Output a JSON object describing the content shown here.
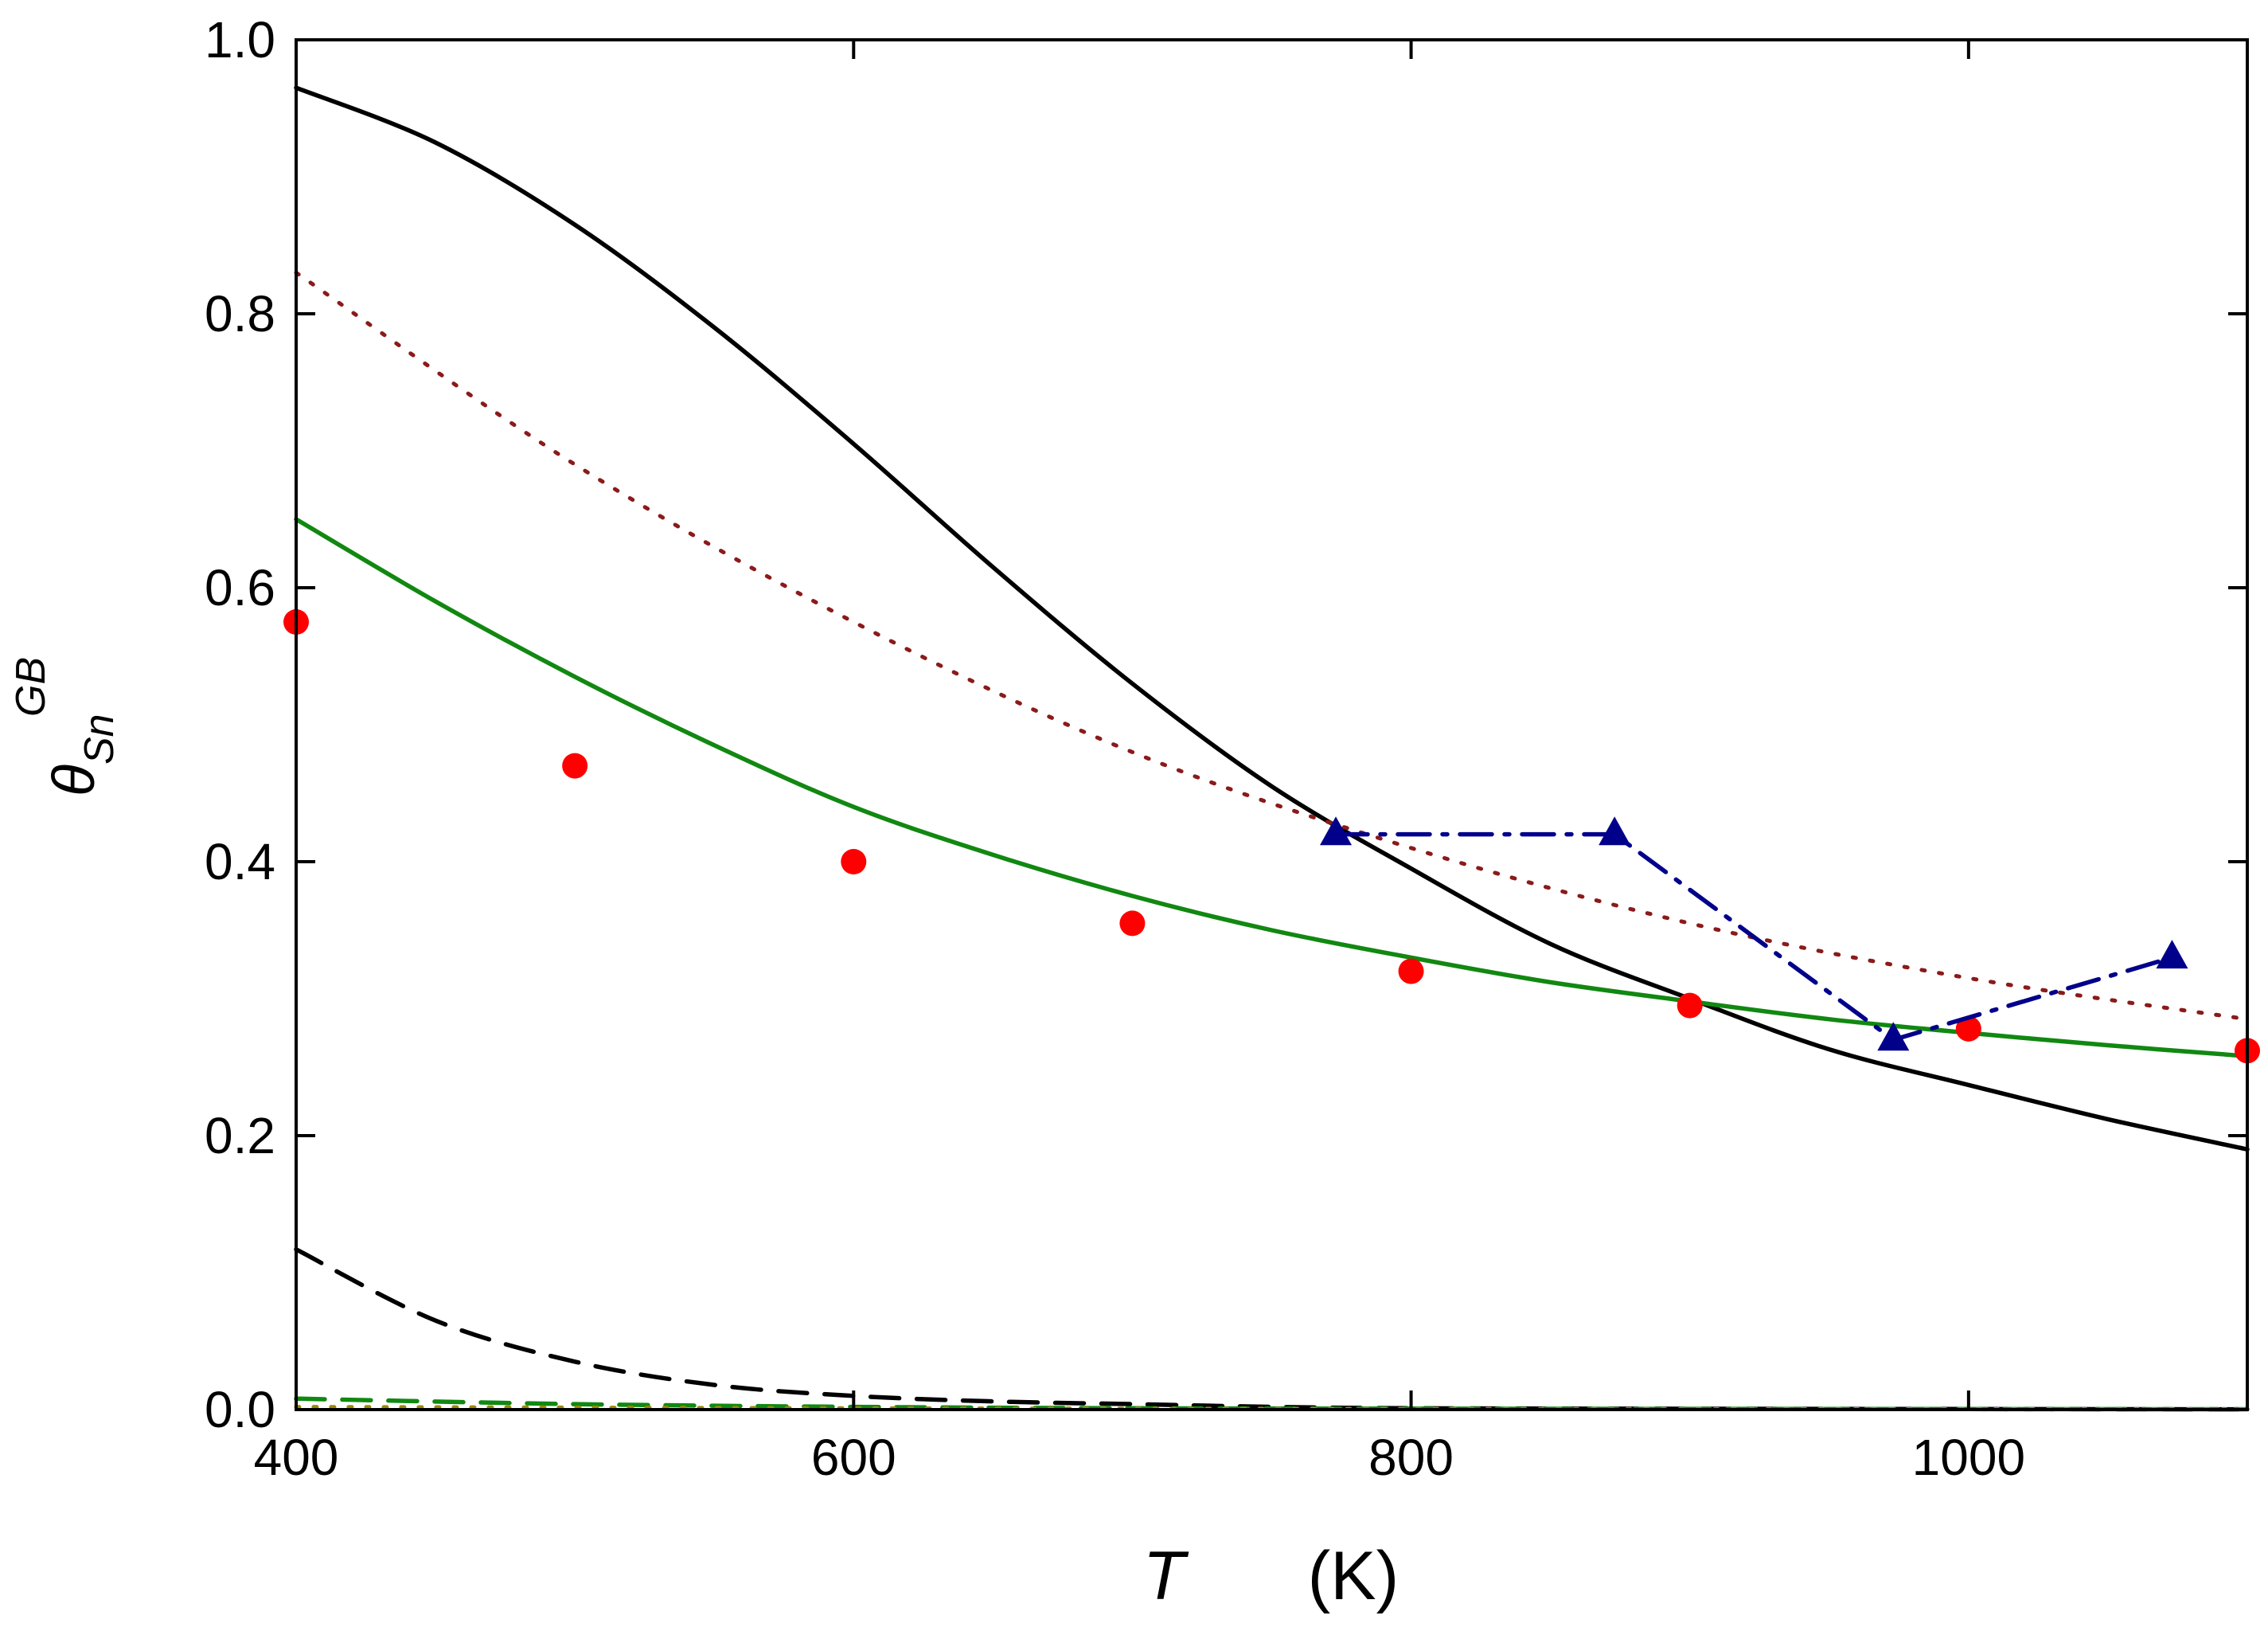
{
  "chart_data": {
    "type": "line",
    "title": "",
    "xlabel": {
      "symbol": "T",
      "unit": "(K)"
    },
    "ylabel": {
      "symbol": "θ",
      "subscript": "Sn",
      "superscript": "GB"
    },
    "xlim": [
      400,
      1100
    ],
    "ylim": [
      0.0,
      1.0
    ],
    "grid": false,
    "x_ticks": [
      {
        "value": 400,
        "label": "400"
      },
      {
        "value": 600,
        "label": "600"
      },
      {
        "value": 800,
        "label": "800"
      },
      {
        "value": 1000,
        "label": "1000"
      }
    ],
    "y_ticks": [
      {
        "value": 0.0,
        "label": "0.0"
      },
      {
        "value": 0.2,
        "label": "0.2"
      },
      {
        "value": 0.4,
        "label": "0.4"
      },
      {
        "value": 0.6,
        "label": "0.6"
      },
      {
        "value": 0.8,
        "label": "0.8"
      },
      {
        "value": 1.0,
        "label": "1.0"
      }
    ],
    "series": [
      {
        "name": "black solid",
        "style": "solid",
        "color": "#000000",
        "marker": "none",
        "x": [
          400,
          450,
          500,
          550,
          600,
          650,
          700,
          750,
          800,
          850,
          900,
          950,
          1000,
          1050,
          1100
        ],
        "y": [
          0.965,
          0.925,
          0.865,
          0.79,
          0.705,
          0.615,
          0.53,
          0.455,
          0.395,
          0.34,
          0.3,
          0.263,
          0.237,
          0.212,
          0.19
        ]
      },
      {
        "name": "dark red dotted",
        "style": "dotted",
        "color": "#8b1a1a",
        "marker": "none",
        "x": [
          400,
          500,
          600,
          700,
          800,
          900,
          1000,
          1100
        ],
        "y": [
          0.83,
          0.69,
          0.575,
          0.48,
          0.41,
          0.355,
          0.315,
          0.285
        ]
      },
      {
        "name": "green solid",
        "style": "solid",
        "color": "#118811",
        "marker": "none",
        "x": [
          400,
          450,
          500,
          550,
          600,
          650,
          700,
          750,
          800,
          850,
          900,
          950,
          1000,
          1050,
          1100
        ],
        "y": [
          0.65,
          0.59,
          0.535,
          0.485,
          0.44,
          0.405,
          0.375,
          0.35,
          0.33,
          0.312,
          0.298,
          0.285,
          0.275,
          0.266,
          0.258
        ]
      },
      {
        "name": "red circles",
        "style": "none",
        "color": "#ff0000",
        "marker": "circle",
        "x": [
          400,
          500,
          600,
          700,
          800,
          900,
          1000,
          1100
        ],
        "y": [
          0.575,
          0.47,
          0.4,
          0.355,
          0.32,
          0.295,
          0.278,
          0.262
        ]
      },
      {
        "name": "blue triangles",
        "style": "dashdot",
        "color": "#00008b",
        "marker": "triangle",
        "x": [
          773,
          873,
          973,
          1073
        ],
        "y": [
          0.42,
          0.42,
          0.27,
          0.33
        ]
      },
      {
        "name": "black dashed",
        "style": "dashed",
        "color": "#000000",
        "marker": "none",
        "x": [
          400,
          450,
          500,
          550,
          600,
          650,
          700,
          750,
          800,
          900,
          1000,
          1100
        ],
        "y": [
          0.117,
          0.065,
          0.035,
          0.018,
          0.01,
          0.006,
          0.004,
          0.002,
          0.001,
          0.0006,
          0.0004,
          0.0002
        ]
      },
      {
        "name": "green dashed",
        "style": "dashed",
        "color": "#118811",
        "marker": "none",
        "x": [
          400,
          500,
          600,
          700,
          800,
          900,
          1000,
          1100
        ],
        "y": [
          0.008,
          0.004,
          0.002,
          0.001,
          0.0007,
          0.0005,
          0.0004,
          0.0003
        ]
      },
      {
        "name": "olive dotted",
        "style": "dotted",
        "color": "#9a8a00",
        "marker": "none",
        "x": [
          400,
          600,
          800,
          1000,
          1100
        ],
        "y": [
          0.002,
          0.001,
          0.0005,
          0.0003,
          0.0002
        ]
      }
    ]
  }
}
